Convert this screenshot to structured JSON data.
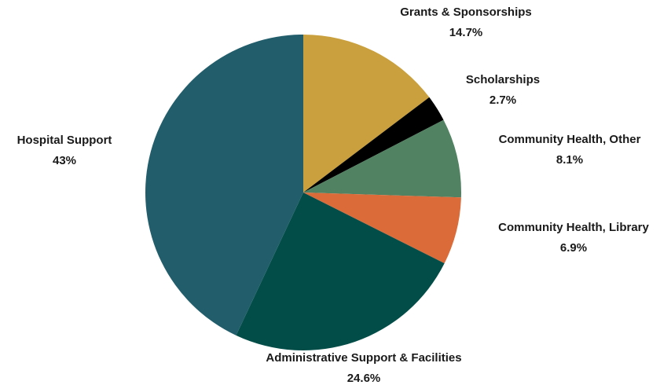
{
  "chart_data": {
    "type": "pie",
    "start_angle_deg": 0,
    "direction": "clockwise",
    "slices": [
      {
        "label": "Grants & Sponsorships",
        "value": 14.7,
        "value_label": "14.7%",
        "color": "#C9A03D"
      },
      {
        "label": "Scholarships",
        "value": 2.7,
        "value_label": "2.7%",
        "color": "#000000"
      },
      {
        "label": "Community Health, Other",
        "value": 8.1,
        "value_label": "8.1%",
        "color": "#518262"
      },
      {
        "label": "Community Health, Library",
        "value": 6.9,
        "value_label": "6.9%",
        "color": "#DB6B39"
      },
      {
        "label": "Administrative Support & Facilities",
        "value": 24.6,
        "value_label": "24.6%",
        "color": "#034D48"
      },
      {
        "label": "Hospital Support",
        "value": 43,
        "value_label": "43%",
        "color": "#215D6B"
      }
    ]
  }
}
